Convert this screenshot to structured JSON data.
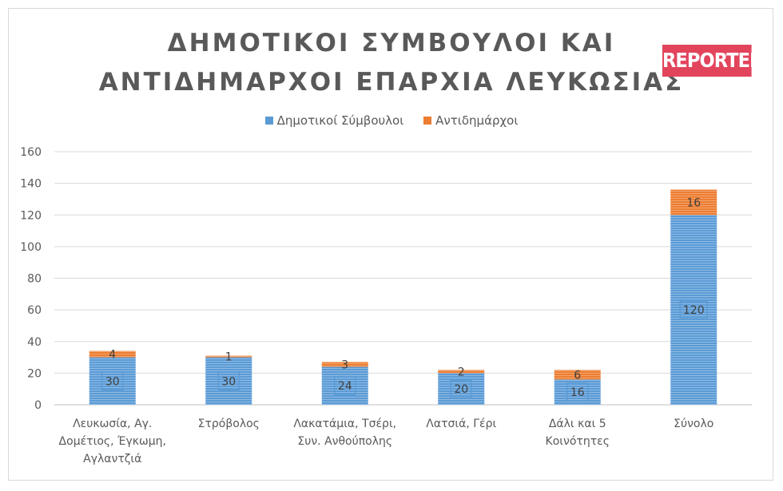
{
  "chart_data": {
    "type": "bar",
    "stacked": true,
    "title_lines": [
      "ΔΗΜΟΤΙΚΟΙ ΣΥΜΒΟΥΛΟΙ ΚΑΙ",
      "ΑΝΤΙΔΗΜΑΡΧΟΙ ΕΠΑΡΧΙΑ ΛΕΥΚΩΣΙΑΣ"
    ],
    "categories": [
      [
        "Λευκωσία, Αγ.",
        "Δομέτιος, Έγκωμη,",
        "Αγλαντζιά"
      ],
      [
        "Στρόβολος"
      ],
      [
        "Λακατάμια, Τσέρι,",
        "Συν. Ανθούπολης"
      ],
      [
        "Λατσιά, Γέρι"
      ],
      [
        "Δάλι και 5",
        "Κοινότητες"
      ],
      [
        "Σύνολο"
      ]
    ],
    "series": [
      {
        "name": "Δημοτικοί Σύμβουλοι",
        "values": [
          30,
          30,
          24,
          20,
          16,
          120
        ],
        "color": "#5b9bd5"
      },
      {
        "name": "Αντιδημάρχοι",
        "values": [
          4,
          1,
          3,
          2,
          6,
          16
        ],
        "color": "#ed7d31"
      }
    ],
    "ylim": [
      0,
      160
    ],
    "yticks": [
      0,
      20,
      40,
      60,
      80,
      100,
      120,
      140,
      160
    ],
    "grid": true,
    "legend_position": "top"
  },
  "logo_text": "REPORTER"
}
